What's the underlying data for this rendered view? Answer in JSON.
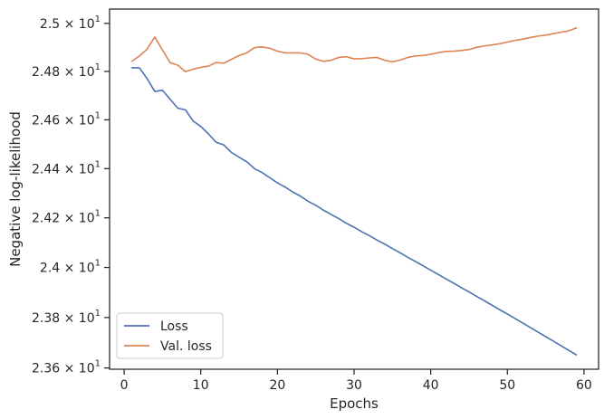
{
  "chart_data": {
    "type": "line",
    "xlabel": "Epochs",
    "ylabel": "Negative log-likelihood",
    "xlim": [
      -1.9,
      61.9
    ],
    "ylim": [
      23.595,
      25.06
    ],
    "y_scale": "log",
    "grid": false,
    "legend_position": "lower-left",
    "x_ticks": [
      0,
      10,
      20,
      30,
      40,
      50,
      60
    ],
    "x_tick_labels": [
      "0",
      "10",
      "20",
      "30",
      "40",
      "50",
      "60"
    ],
    "y_ticks": [
      {
        "value": 23.6,
        "mantissa": "2.36"
      },
      {
        "value": 23.8,
        "mantissa": "2.38"
      },
      {
        "value": 24.0,
        "mantissa": "2.4"
      },
      {
        "value": 24.2,
        "mantissa": "2.42"
      },
      {
        "value": 24.4,
        "mantissa": "2.44"
      },
      {
        "value": 24.6,
        "mantissa": "2.46"
      },
      {
        "value": 24.8,
        "mantissa": "2.48"
      },
      {
        "value": 25.0,
        "mantissa": "2.5"
      }
    ],
    "y_tick_base": "10",
    "y_tick_exponent": "1",
    "y_tick_times": "×",
    "series": [
      {
        "name": "Loss",
        "color": "#4c72b0",
        "x": [
          1,
          2,
          3,
          4,
          5,
          6,
          7,
          8,
          9,
          10,
          11,
          12,
          13,
          14,
          15,
          16,
          17,
          18,
          19,
          20,
          21,
          22,
          23,
          24,
          25,
          26,
          27,
          28,
          29,
          30,
          31,
          32,
          33,
          34,
          35,
          36,
          37,
          38,
          39,
          40,
          41,
          42,
          43,
          44,
          45,
          46,
          47,
          48,
          49,
          50,
          51,
          52,
          53,
          54,
          55,
          56,
          57,
          58,
          59
        ],
        "values": [
          24.815,
          24.815,
          24.77,
          24.717,
          24.722,
          24.685,
          24.648,
          24.641,
          24.595,
          24.573,
          24.542,
          24.508,
          24.497,
          24.466,
          24.447,
          24.428,
          24.4,
          24.384,
          24.363,
          24.342,
          24.325,
          24.305,
          24.288,
          24.267,
          24.251,
          24.231,
          24.214,
          24.197,
          24.178,
          24.162,
          24.144,
          24.128,
          24.11,
          24.094,
          24.076,
          24.059,
          24.041,
          24.024,
          24.007,
          23.989,
          23.972,
          23.954,
          23.937,
          23.919,
          23.902,
          23.884,
          23.867,
          23.849,
          23.831,
          23.814,
          23.796,
          23.778,
          23.76,
          23.742,
          23.724,
          23.706,
          23.688,
          23.67,
          23.652
        ]
      },
      {
        "name": "Val. loss",
        "color": "#dd8452",
        "x": [
          1,
          2,
          3,
          4,
          5,
          6,
          7,
          8,
          9,
          10,
          11,
          12,
          13,
          14,
          15,
          16,
          17,
          18,
          19,
          20,
          21,
          22,
          23,
          24,
          25,
          26,
          27,
          28,
          29,
          30,
          31,
          32,
          33,
          34,
          35,
          36,
          37,
          38,
          39,
          40,
          41,
          42,
          43,
          44,
          45,
          46,
          47,
          48,
          49,
          50,
          51,
          52,
          53,
          54,
          55,
          56,
          57,
          58,
          59
        ],
        "values": [
          24.842,
          24.864,
          24.893,
          24.943,
          24.889,
          24.836,
          24.826,
          24.799,
          24.809,
          24.817,
          24.822,
          24.837,
          24.834,
          24.85,
          24.866,
          24.877,
          24.899,
          24.902,
          24.896,
          24.884,
          24.877,
          24.877,
          24.877,
          24.871,
          24.851,
          24.842,
          24.846,
          24.858,
          24.861,
          24.852,
          24.853,
          24.856,
          24.858,
          24.846,
          24.84,
          24.847,
          24.858,
          24.864,
          24.866,
          24.871,
          24.878,
          24.883,
          24.884,
          24.887,
          24.891,
          24.9,
          24.906,
          24.91,
          24.915,
          24.922,
          24.929,
          24.934,
          24.941,
          24.947,
          24.951,
          24.957,
          24.963,
          24.969,
          24.981
        ]
      }
    ]
  }
}
